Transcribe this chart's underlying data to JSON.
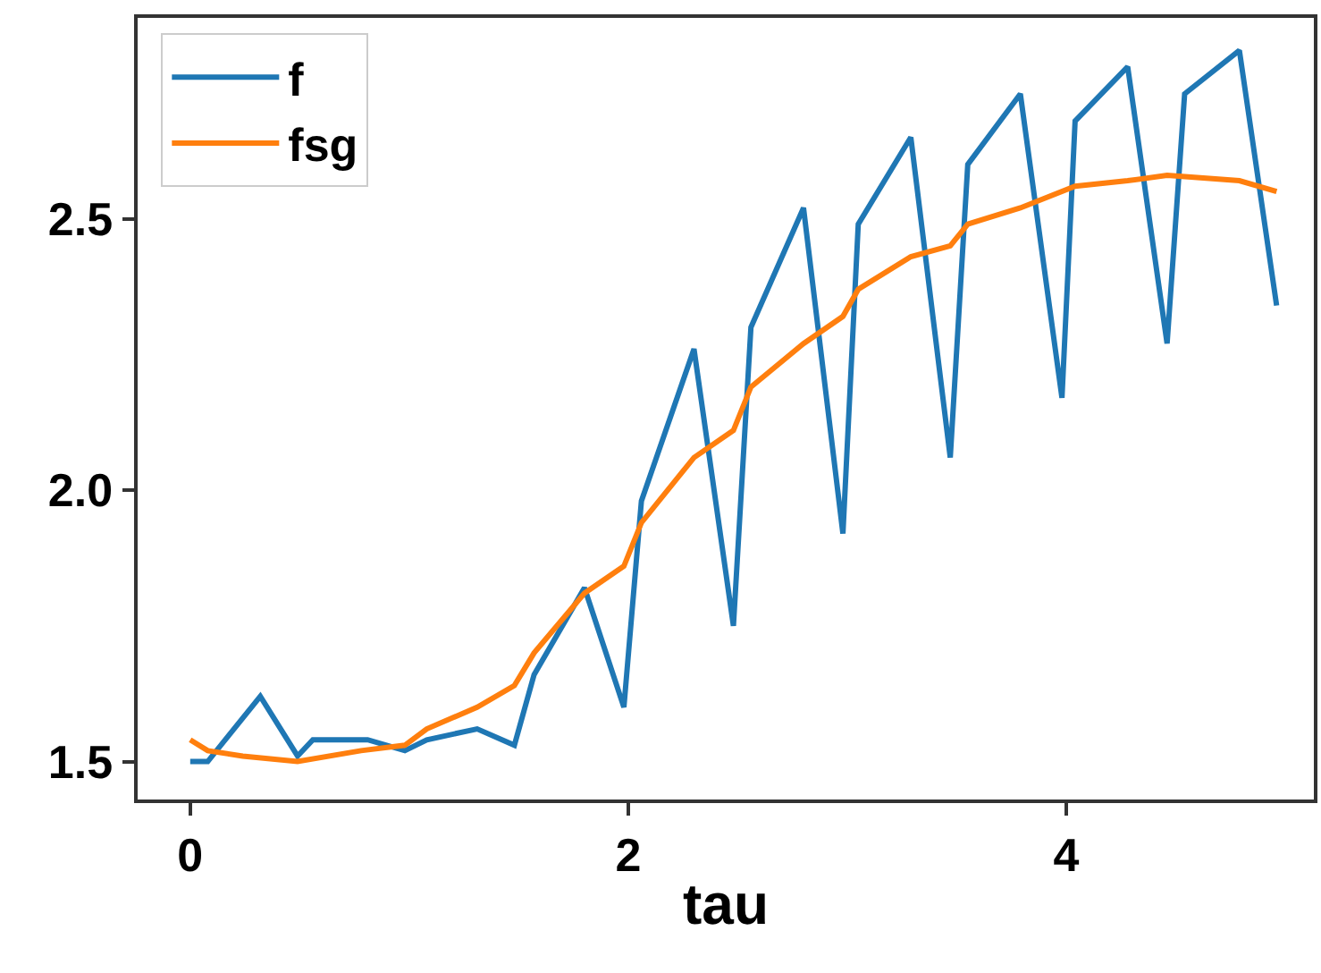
{
  "chart_data": {
    "type": "line",
    "xlabel": "tau",
    "series": [
      {
        "name": "f",
        "color": "#1f77b4",
        "x": [
          0,
          0.08,
          0.32,
          0.49,
          0.56,
          0.81,
          0.98,
          1.08,
          1.31,
          1.48,
          1.57,
          1.8,
          1.98,
          2.06,
          2.3,
          2.48,
          2.56,
          2.8,
          2.98,
          3.05,
          3.29,
          3.47,
          3.55,
          3.79,
          3.98,
          4.04,
          4.28,
          4.46,
          4.54,
          4.79,
          4.96
        ],
        "values": [
          1.5,
          1.5,
          1.62,
          1.51,
          1.54,
          1.54,
          1.52,
          1.54,
          1.56,
          1.53,
          1.66,
          1.82,
          1.6,
          1.98,
          2.26,
          1.75,
          2.3,
          2.52,
          1.92,
          2.49,
          2.65,
          2.06,
          2.6,
          2.73,
          2.17,
          2.68,
          2.78,
          2.27,
          2.73,
          2.81,
          2.34
        ]
      },
      {
        "name": "fsg",
        "color": "#ff7f0e",
        "x": [
          0,
          0.08,
          0.24,
          0.49,
          0.78,
          0.98,
          1.08,
          1.31,
          1.48,
          1.57,
          1.8,
          1.98,
          2.06,
          2.3,
          2.48,
          2.56,
          2.8,
          2.98,
          3.05,
          3.29,
          3.47,
          3.55,
          3.79,
          4.04,
          4.28,
          4.46,
          4.79,
          4.96
        ],
        "values": [
          1.54,
          1.52,
          1.51,
          1.5,
          1.52,
          1.53,
          1.56,
          1.6,
          1.64,
          1.7,
          1.81,
          1.86,
          1.94,
          2.06,
          2.11,
          2.19,
          2.27,
          2.32,
          2.37,
          2.43,
          2.45,
          2.49,
          2.52,
          2.56,
          2.57,
          2.58,
          2.57,
          2.55
        ]
      }
    ],
    "xlim": [
      -0.24,
      5.13
    ],
    "ylim": [
      1.43,
      2.87
    ],
    "xticks": [
      0,
      2,
      4
    ],
    "yticks": [
      1.5,
      {
        "value": 2.0,
        "label": "2.0"
      },
      2.5
    ],
    "legend": "top left",
    "marker": "none",
    "line_style": "solid"
  }
}
